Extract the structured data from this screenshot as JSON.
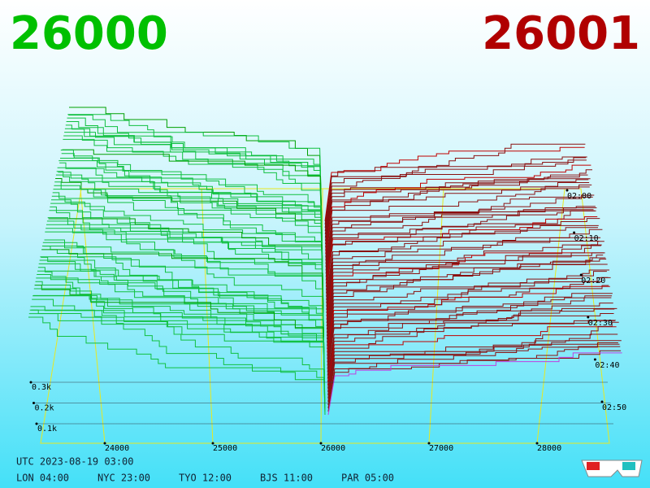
{
  "header": {
    "bid": "26000",
    "ask": "26001"
  },
  "price_axis": {
    "ticks": [
      24000,
      25000,
      26000,
      27000,
      28000
    ]
  },
  "time_axis": {
    "ticks": [
      "02:00",
      "02:10",
      "02:20",
      "02:30",
      "02:40",
      "02:50"
    ]
  },
  "volume_axis": {
    "ticks": [
      "0.3k",
      "0.2k",
      "0.1k"
    ]
  },
  "footer": {
    "utc": "UTC 2023-08-19 03:00",
    "clocks": [
      "LON 04:00",
      "NYC 23:00",
      "TYO 12:00",
      "BJS 11:00",
      "PAR 05:00"
    ]
  }
}
